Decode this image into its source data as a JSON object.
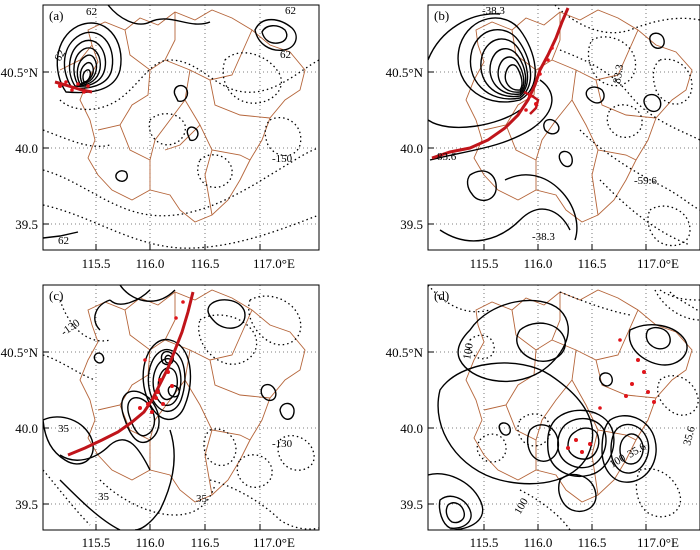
{
  "figure": {
    "colors": {
      "frame": "#000000",
      "grid": "#444444",
      "boundary": "#b5653a",
      "front": "#c0141a",
      "station": "#e0141a"
    },
    "panels": [
      {
        "letter": "(a)",
        "y_ticks": [
          "40.5°N",
          "40.0",
          "39.5"
        ],
        "x_ticks": [
          "115.5",
          "116.0",
          "116.5",
          "117.0°E"
        ],
        "contour_labels": [
          "62",
          "62",
          "62",
          "-150",
          "62",
          "62"
        ]
      },
      {
        "letter": "(b)",
        "y_ticks": [
          "40.5°N",
          "40.0",
          "39.5"
        ],
        "x_ticks": [
          "115.5",
          "116.0",
          "116.5",
          "117.0°E"
        ],
        "contour_labels": [
          "-38.3",
          "83.6",
          "-59.6",
          "-38.3",
          "83.3"
        ]
      },
      {
        "letter": "(c)",
        "y_ticks": [
          "40.5°N",
          "40.0",
          "39.5"
        ],
        "x_ticks": [
          "115.5",
          "116.0",
          "116.5",
          "117.0°E"
        ],
        "contour_labels": [
          "-130",
          "35",
          "35",
          "-130",
          "35"
        ]
      },
      {
        "letter": "(d)",
        "y_ticks": [
          "40.5°N",
          "40.0",
          "39.5"
        ],
        "x_ticks": [
          "115.5",
          "116.0",
          "116.5",
          "117.0°E"
        ],
        "contour_labels": [
          "100",
          "35.6",
          "100",
          "35.6",
          "100"
        ]
      }
    ]
  }
}
